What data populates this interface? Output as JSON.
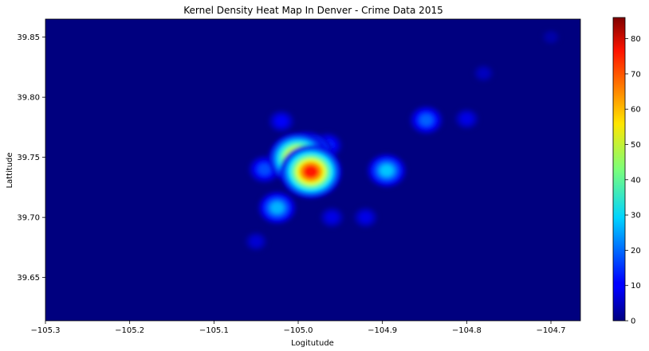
{
  "chart_data": {
    "type": "heatmap",
    "title": "Kernel Density Heat Map In Denver - Crime Data 2015",
    "xlabel": "Logitutude",
    "ylabel": "Lattitude",
    "xlim": [
      -105.3,
      -104.665
    ],
    "ylim": [
      39.614,
      39.865
    ],
    "x_ticks": [
      -105.3,
      -105.2,
      -105.1,
      -105.0,
      -104.9,
      -104.8,
      -104.7
    ],
    "x_tick_labels": [
      "−105.3",
      "−105.2",
      "−105.1",
      "−105.0",
      "−104.9",
      "−104.8",
      "−104.7"
    ],
    "y_ticks": [
      39.65,
      39.7,
      39.75,
      39.8,
      39.85
    ],
    "y_tick_labels": [
      "39.65",
      "39.70",
      "39.75",
      "39.80",
      "39.85"
    ],
    "colorbar": {
      "colormap": "jet",
      "range": [
        0,
        86
      ],
      "ticks": [
        0,
        10,
        20,
        30,
        40,
        50,
        60,
        70,
        80
      ],
      "tick_labels": [
        "0",
        "10",
        "20",
        "30",
        "40",
        "50",
        "60",
        "70",
        "80"
      ]
    },
    "grid": false,
    "hotspots": [
      {
        "lon": -104.985,
        "lat": 39.738,
        "density": 86
      },
      {
        "lon": -105.0,
        "lat": 39.749,
        "density": 80
      },
      {
        "lon": -104.99,
        "lat": 39.752,
        "density": 62
      },
      {
        "lon": -104.895,
        "lat": 39.739,
        "density": 32
      },
      {
        "lon": -105.025,
        "lat": 39.708,
        "density": 30
      },
      {
        "lon": -104.848,
        "lat": 39.781,
        "density": 22
      },
      {
        "lon": -105.04,
        "lat": 39.74,
        "density": 20
      },
      {
        "lon": -104.965,
        "lat": 39.76,
        "density": 16
      },
      {
        "lon": -105.02,
        "lat": 39.78,
        "density": 12
      },
      {
        "lon": -104.96,
        "lat": 39.7,
        "density": 10
      },
      {
        "lon": -104.92,
        "lat": 39.7,
        "density": 10
      },
      {
        "lon": -104.8,
        "lat": 39.782,
        "density": 10
      },
      {
        "lon": -104.78,
        "lat": 39.82,
        "density": 6
      },
      {
        "lon": -105.05,
        "lat": 39.68,
        "density": 8
      },
      {
        "lon": -104.7,
        "lat": 39.85,
        "density": 4
      }
    ]
  }
}
